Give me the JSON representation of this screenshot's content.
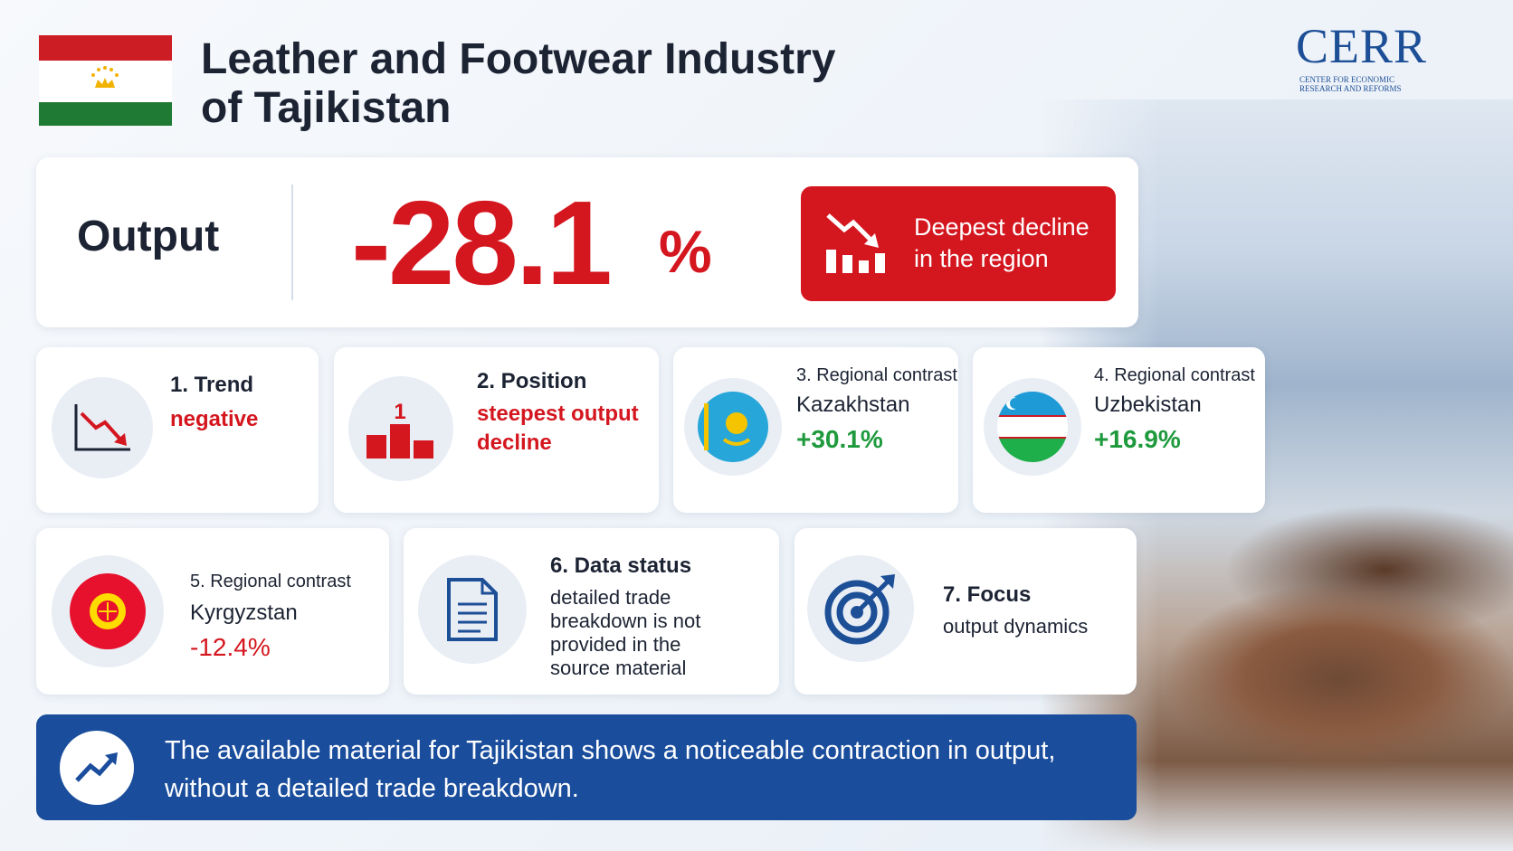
{
  "header": {
    "title_line1": "Leather and Footwear Industry",
    "title_line2": "of Tajikistan"
  },
  "logo": {
    "name": "CERR",
    "subtitle_line1": "CENTER FOR ECONOMIC",
    "subtitle_line2": "RESEARCH AND REFORMS"
  },
  "output": {
    "label": "Output",
    "value": "-28.1",
    "unit": "%",
    "badge_line1": "Deepest decline",
    "badge_line2": "in the region"
  },
  "cards": [
    {
      "title": "1. Trend",
      "value": "negative"
    },
    {
      "title": "2. Position",
      "icon_label": "1",
      "value": "steepest output decline"
    },
    {
      "title": "3. Regional contrast",
      "country": "Kazakhstan",
      "value": "+30.1%"
    },
    {
      "title": "4. Regional contrast",
      "country": "Uzbekistan",
      "value": "+16.9%"
    },
    {
      "title": "5. Regional contrast",
      "country": "Kyrgyzstan",
      "value": "-12.4%"
    },
    {
      "title": "6. Data status",
      "value": "detailed trade breakdown is not provided in the source material"
    },
    {
      "title": "7. Focus",
      "value": "output dynamics"
    }
  ],
  "footer": {
    "line1": "The available material for Tajikistan shows a noticeable contraction in output,",
    "line2": "without a detailed trade breakdown."
  }
}
